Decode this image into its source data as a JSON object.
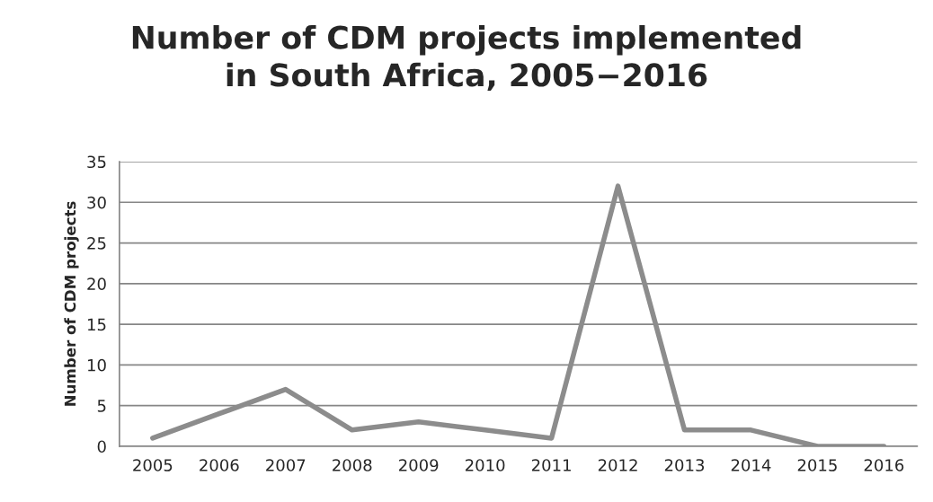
{
  "chart_data": {
    "type": "line",
    "title": "Number of CDM projects implemented\nin South Africa, 2005−2016",
    "ylabel": "Number of CDM projects",
    "categories": [
      "2005",
      "2006",
      "2007",
      "2008",
      "2009",
      "2010",
      "2011",
      "2012",
      "2013",
      "2014",
      "2015",
      "2016"
    ],
    "series": [
      {
        "color": "#8c8c8c",
        "values": [
          1,
          4,
          7,
          2,
          3,
          2,
          1,
          32,
          2,
          2,
          0,
          0
        ]
      }
    ],
    "ylim": [
      0,
      35
    ],
    "yticks": [
      0,
      5,
      10,
      15,
      20,
      25,
      30,
      35
    ],
    "grid": "y",
    "legend": false,
    "marker": "none",
    "line_style": "solid"
  }
}
